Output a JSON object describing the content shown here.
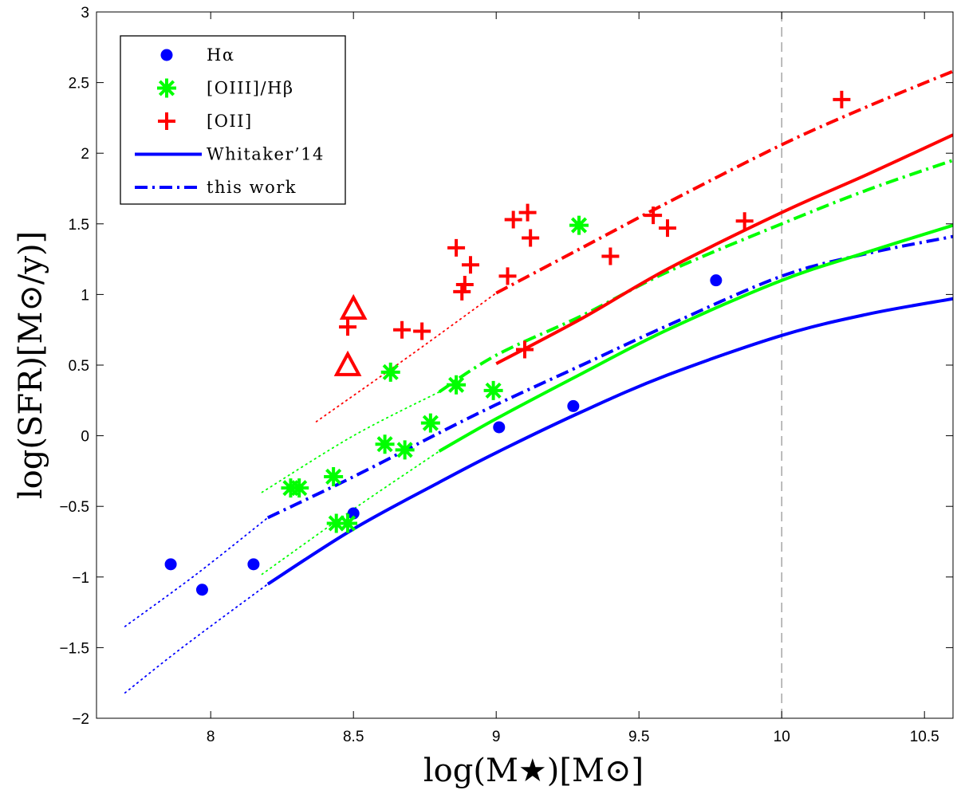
{
  "chart_data": {
    "type": "scatter",
    "xlabel": "log(M★)[M⊙]",
    "ylabel": "log(SFR)[M⊙/y)]",
    "xlim": [
      7.6,
      10.6
    ],
    "ylim": [
      -2,
      3
    ],
    "xticks": [
      8,
      8.5,
      9,
      9.5,
      10,
      10.5
    ],
    "xtick_labels": [
      "8",
      "8.5",
      "9",
      "9.5",
      "10",
      "10.5"
    ],
    "yticks": [
      -2,
      -1.5,
      -1,
      -0.5,
      0,
      0.5,
      1,
      1.5,
      2,
      2.5,
      3
    ],
    "ytick_labels": [
      "−2",
      "−1.5",
      "−1",
      "−0.5",
      "0",
      "0.5",
      "1",
      "1.5",
      "2",
      "2.5",
      "3"
    ],
    "vertical_reference_line": {
      "x": 10,
      "style": "dashed",
      "color": "#999999"
    },
    "legend": {
      "position": "top-left",
      "entries": [
        {
          "label": "Hα",
          "marker": "dot",
          "color": "#0000ff"
        },
        {
          "label": "[OIII]/Hβ",
          "marker": "asterisk",
          "color": "#00ff00"
        },
        {
          "label": "[OII]",
          "marker": "plus",
          "color": "#ff0000"
        },
        {
          "label": "Whitaker’14",
          "marker": "solid-line",
          "color": "#0000ff"
        },
        {
          "label": "this work",
          "marker": "dashdot-line",
          "color": "#0000ff"
        }
      ]
    },
    "series": [
      {
        "name": "Hα",
        "marker": "dot",
        "color": "#0000ff",
        "points": [
          [
            7.86,
            -0.91
          ],
          [
            7.97,
            -1.09
          ],
          [
            8.15,
            -0.91
          ],
          [
            8.5,
            -0.55
          ],
          [
            9.01,
            0.06
          ],
          [
            9.27,
            0.21
          ],
          [
            9.77,
            1.1
          ]
        ]
      },
      {
        "name": "[OIII]/Hβ",
        "marker": "asterisk",
        "color": "#00ff00",
        "points": [
          [
            8.28,
            -0.37
          ],
          [
            8.31,
            -0.37
          ],
          [
            8.43,
            -0.29
          ],
          [
            8.44,
            -0.62
          ],
          [
            8.48,
            -0.62
          ],
          [
            8.61,
            -0.06
          ],
          [
            8.63,
            0.45
          ],
          [
            8.68,
            -0.1
          ],
          [
            8.77,
            0.09
          ],
          [
            8.86,
            0.36
          ],
          [
            8.99,
            0.32
          ],
          [
            9.29,
            1.49
          ]
        ]
      },
      {
        "name": "[OII]",
        "marker": "plus",
        "color": "#ff0000",
        "points": [
          [
            8.48,
            0.77
          ],
          [
            8.67,
            0.75
          ],
          [
            8.74,
            0.74
          ],
          [
            8.86,
            1.33
          ],
          [
            8.88,
            1.02
          ],
          [
            8.89,
            1.07
          ],
          [
            8.91,
            1.21
          ],
          [
            9.04,
            1.13
          ],
          [
            9.06,
            1.53
          ],
          [
            9.1,
            0.61
          ],
          [
            9.11,
            1.58
          ],
          [
            9.12,
            1.4
          ],
          [
            9.4,
            1.27
          ],
          [
            9.55,
            1.56
          ],
          [
            9.6,
            1.47
          ],
          [
            9.87,
            1.52
          ],
          [
            10.21,
            2.38
          ]
        ]
      },
      {
        "name": "[OII] (triangles)",
        "marker": "triangle",
        "color": "#ff0000",
        "points": [
          [
            8.5,
            0.9
          ],
          [
            8.48,
            0.5
          ]
        ]
      }
    ],
    "curves": [
      {
        "name": "Whitaker’14 Hα",
        "color": "#0000ff",
        "style": "solid",
        "points": [
          [
            8.2,
            -1.05
          ],
          [
            8.5,
            -0.66
          ],
          [
            8.8,
            -0.33
          ],
          [
            9.0,
            -0.12
          ],
          [
            9.3,
            0.17
          ],
          [
            9.6,
            0.43
          ],
          [
            10.0,
            0.71
          ],
          [
            10.3,
            0.86
          ],
          [
            10.6,
            0.97
          ]
        ]
      },
      {
        "name": "Whitaker’14 Hα extrapolated",
        "color": "#0000ff",
        "style": "dotted",
        "points": [
          [
            7.7,
            -1.82
          ],
          [
            7.9,
            -1.5
          ],
          [
            8.2,
            -1.05
          ]
        ]
      },
      {
        "name": "this work Hα",
        "color": "#0000ff",
        "style": "dashdot",
        "points": [
          [
            8.2,
            -0.58
          ],
          [
            8.5,
            -0.29
          ],
          [
            8.8,
            0.02
          ],
          [
            9.0,
            0.22
          ],
          [
            9.3,
            0.5
          ],
          [
            9.6,
            0.78
          ],
          [
            10.0,
            1.13
          ],
          [
            10.3,
            1.29
          ],
          [
            10.6,
            1.41
          ]
        ]
      },
      {
        "name": "this work Hα extrapolated",
        "color": "#0000ff",
        "style": "dotted",
        "points": [
          [
            7.7,
            -1.35
          ],
          [
            7.95,
            -0.98
          ],
          [
            8.2,
            -0.58
          ]
        ]
      },
      {
        "name": "Whitaker’14 [OIII]/Hβ",
        "color": "#00ff00",
        "style": "solid",
        "points": [
          [
            8.8,
            -0.11
          ],
          [
            9.0,
            0.12
          ],
          [
            9.3,
            0.44
          ],
          [
            9.6,
            0.75
          ],
          [
            10.0,
            1.1
          ],
          [
            10.3,
            1.3
          ],
          [
            10.6,
            1.49
          ]
        ]
      },
      {
        "name": "Whitaker’14 [OIII]/Hβ extrapolated",
        "color": "#00ff00",
        "style": "dotted",
        "points": [
          [
            8.18,
            -0.98
          ],
          [
            8.5,
            -0.52
          ],
          [
            8.8,
            -0.11
          ]
        ]
      },
      {
        "name": "this work [OIII]/Hβ",
        "color": "#00ff00",
        "style": "dashdot",
        "points": [
          [
            8.8,
            0.31
          ],
          [
            9.0,
            0.57
          ],
          [
            9.3,
            0.85
          ],
          [
            9.6,
            1.16
          ],
          [
            10.0,
            1.5
          ],
          [
            10.3,
            1.74
          ],
          [
            10.6,
            1.95
          ]
        ]
      },
      {
        "name": "this work [OIII]/Hβ extrapolated",
        "color": "#00ff00",
        "style": "dotted",
        "points": [
          [
            8.18,
            -0.4
          ],
          [
            8.5,
            0.0
          ],
          [
            8.8,
            0.31
          ]
        ]
      },
      {
        "name": "Whitaker’14 [OII]",
        "color": "#ff0000",
        "style": "solid",
        "points": [
          [
            9.0,
            0.51
          ],
          [
            9.3,
            0.83
          ],
          [
            9.6,
            1.18
          ],
          [
            10.0,
            1.58
          ],
          [
            10.3,
            1.85
          ],
          [
            10.6,
            2.13
          ]
        ]
      },
      {
        "name": "this work [OII]",
        "color": "#ff0000",
        "style": "dashdot",
        "points": [
          [
            9.0,
            1.01
          ],
          [
            9.3,
            1.33
          ],
          [
            9.6,
            1.65
          ],
          [
            10.0,
            2.06
          ],
          [
            10.3,
            2.33
          ],
          [
            10.6,
            2.58
          ]
        ]
      },
      {
        "name": "this work [OII] extrapolated",
        "color": "#ff0000",
        "style": "dotted",
        "points": [
          [
            8.37,
            0.1
          ],
          [
            8.7,
            0.57
          ],
          [
            9.0,
            1.01
          ]
        ]
      }
    ]
  }
}
